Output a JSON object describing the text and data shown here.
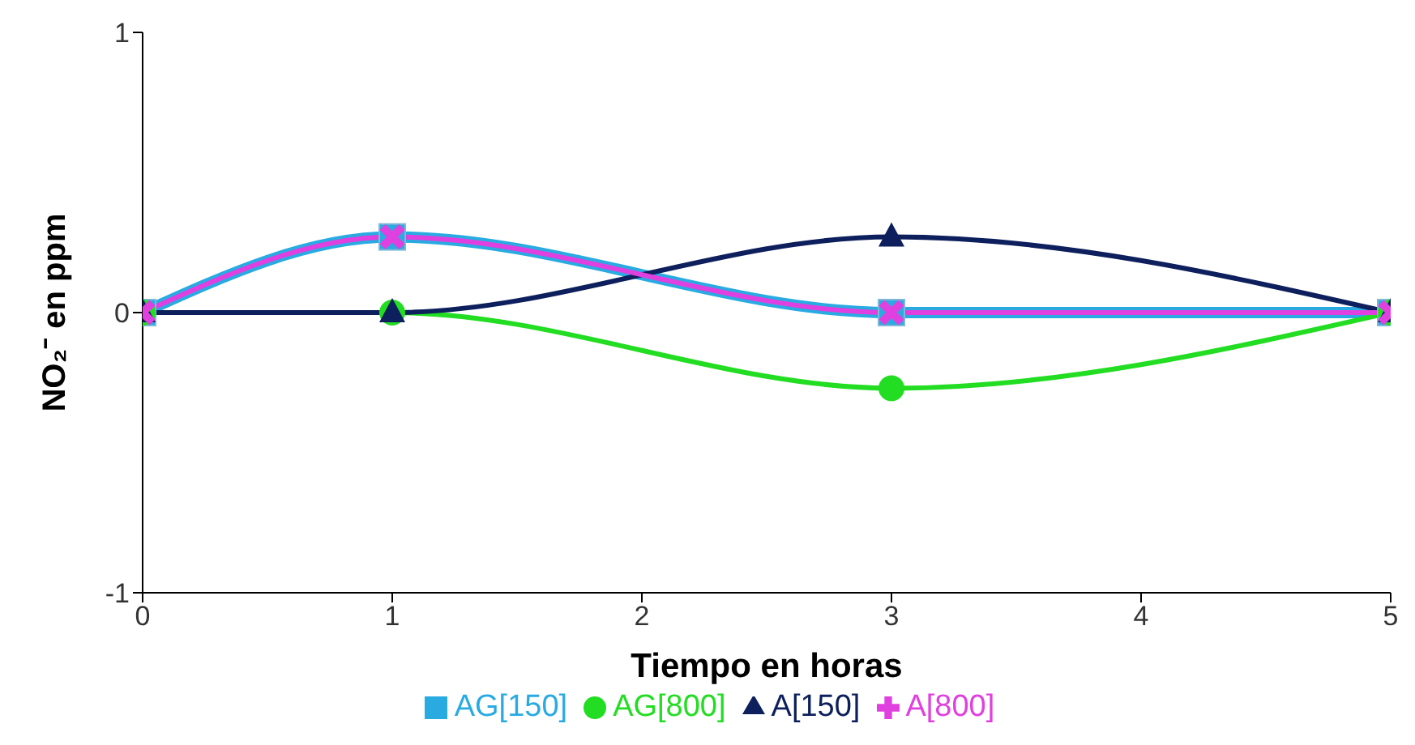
{
  "chart_data": {
    "type": "line",
    "xlabel": "Tiempo en horas",
    "ylabel": "NO₂⁻ en ppm",
    "x": [
      0,
      1,
      3,
      5
    ],
    "xlim": [
      0,
      5
    ],
    "xticks": [
      0,
      1,
      2,
      3,
      4,
      5
    ],
    "ylim": [
      -1,
      1
    ],
    "yticks": [
      -1,
      0,
      1
    ],
    "grid": false,
    "legend": "bottom",
    "line_style": "solid",
    "series": [
      {
        "name": "AG[150]",
        "color": "#29abe2",
        "marker": "square",
        "values": [
          0,
          0.27,
          0,
          0
        ]
      },
      {
        "name": "AG[800]",
        "color": "#22dd22",
        "marker": "circle",
        "values": [
          0,
          0,
          -0.27,
          0
        ]
      },
      {
        "name": "A[150]",
        "color": "#0d1f5c",
        "marker": "triangle",
        "values": [
          0,
          0,
          0.27,
          0
        ]
      },
      {
        "name": "A[800]",
        "color": "#e040e0",
        "marker": "cross",
        "values": [
          0,
          0.27,
          0,
          0
        ]
      }
    ]
  }
}
